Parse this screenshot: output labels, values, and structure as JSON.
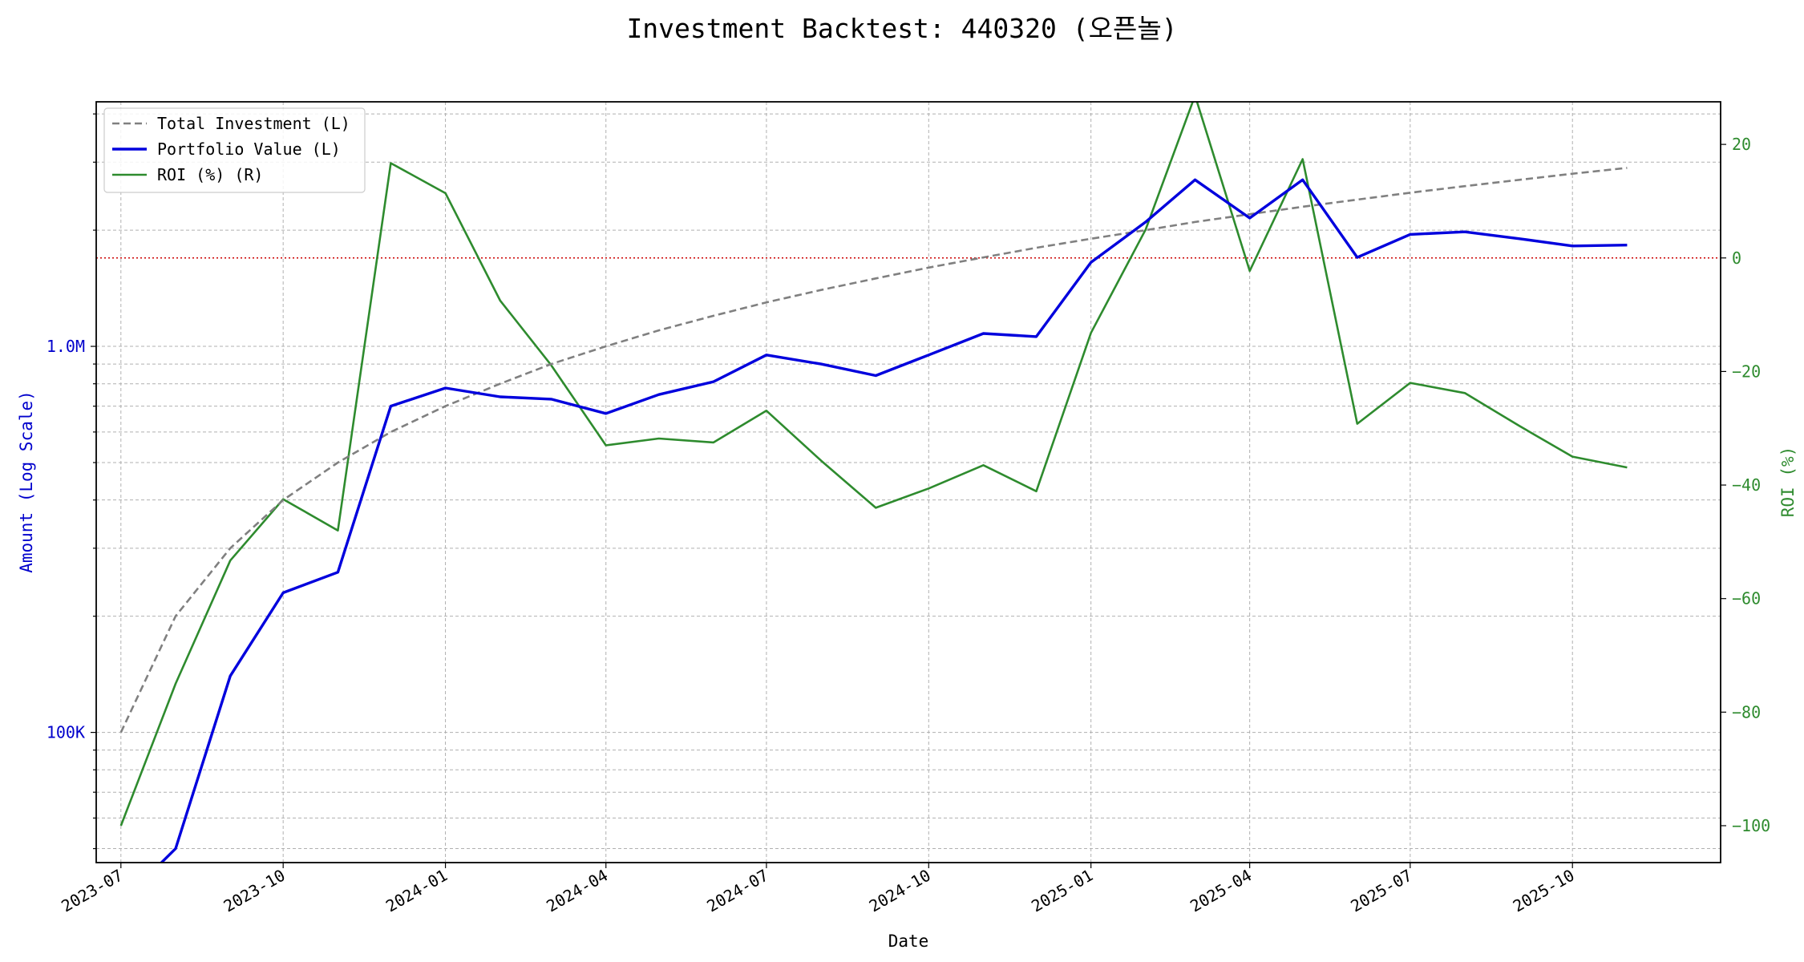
{
  "chart_data": {
    "type": "line",
    "title": "Investment Backtest: 440320 (오픈놀)",
    "xlabel": "Date",
    "ylabel_left": "Amount (Log Scale)",
    "ylabel_right": "ROI (%)",
    "yscale_left": "log",
    "ylim_left": [
      46000,
      4300000
    ],
    "ylim_right": [
      -106.5,
      27.5
    ],
    "xlim": [
      "2023-06-17",
      "2025-12-24"
    ],
    "grid": true,
    "legend": "top-left",
    "reference_line_right": 0,
    "x_ticks": [
      {
        "date": "2023-07-01",
        "label": "2023-07"
      },
      {
        "date": "2023-10-01",
        "label": "2023-10"
      },
      {
        "date": "2024-01-01",
        "label": "2024-01"
      },
      {
        "date": "2024-04-01",
        "label": "2024-04"
      },
      {
        "date": "2024-07-01",
        "label": "2024-07"
      },
      {
        "date": "2024-10-01",
        "label": "2024-10"
      },
      {
        "date": "2025-01-01",
        "label": "2025-01"
      },
      {
        "date": "2025-04-01",
        "label": "2025-04"
      },
      {
        "date": "2025-07-01",
        "label": "2025-07"
      },
      {
        "date": "2025-10-01",
        "label": "2025-10"
      }
    ],
    "y_ticks_left": [
      {
        "value": 100000,
        "label": "100K"
      },
      {
        "value": 1000000,
        "label": "1.0M"
      }
    ],
    "y_ticks_right": [
      {
        "value": 20,
        "label": "20"
      },
      {
        "value": 0,
        "label": "0"
      },
      {
        "value": -20,
        "label": "−20"
      },
      {
        "value": -40,
        "label": "−40"
      },
      {
        "value": -60,
        "label": "−60"
      },
      {
        "value": -80,
        "label": "−80"
      },
      {
        "value": -100,
        "label": "−100"
      }
    ],
    "x": [
      "2023-07-01",
      "2023-08-01",
      "2023-09-01",
      "2023-10-01",
      "2023-11-01",
      "2023-12-01",
      "2024-01-01",
      "2024-02-01",
      "2024-03-01",
      "2024-04-01",
      "2024-05-01",
      "2024-06-01",
      "2024-07-01",
      "2024-08-01",
      "2024-09-01",
      "2024-10-01",
      "2024-11-01",
      "2024-12-01",
      "2025-01-01",
      "2025-02-01",
      "2025-03-01",
      "2025-04-01",
      "2025-05-01",
      "2025-06-01",
      "2025-07-01",
      "2025-08-01",
      "2025-09-01",
      "2025-10-01",
      "2025-11-01"
    ],
    "series": [
      {
        "name": "Total Investment (L)",
        "axis": "left",
        "color": "#808080",
        "style": "dashed",
        "values": [
          100000,
          200000,
          300000,
          400000,
          500000,
          600000,
          700000,
          800000,
          900000,
          1000000,
          1100000,
          1200000,
          1300000,
          1400000,
          1500000,
          1600000,
          1700000,
          1800000,
          1900000,
          2000000,
          2100000,
          2200000,
          2300000,
          2400000,
          2500000,
          2600000,
          2700000,
          2800000,
          2900000
        ]
      },
      {
        "name": "Portfolio Value (L)",
        "axis": "left",
        "color": "#0000dd",
        "style": "solid",
        "values": [
          0,
          50000,
          140000,
          230000,
          260000,
          700000,
          780000,
          740000,
          730000,
          670000,
          750000,
          810000,
          950000,
          900000,
          840000,
          950000,
          1080000,
          1060000,
          1650000,
          2100000,
          2700000,
          2150000,
          2700000,
          1700000,
          1950000,
          1980000,
          1900000,
          1820000,
          1830000
        ]
      },
      {
        "name": "ROI (%) (R)",
        "axis": "right",
        "color": "#2e8b2e",
        "style": "solid",
        "values": [
          -100,
          -75,
          -53.3,
          -42.5,
          -48,
          16.7,
          11.4,
          -7.5,
          -18.9,
          -33,
          -31.8,
          -32.5,
          -26.9,
          -35.7,
          -44,
          -40.6,
          -36.5,
          -41.1,
          -13.2,
          5,
          28.6,
          -2.3,
          17.4,
          -29.2,
          -22,
          -23.8,
          -29.6,
          -35,
          -36.9
        ]
      }
    ]
  }
}
